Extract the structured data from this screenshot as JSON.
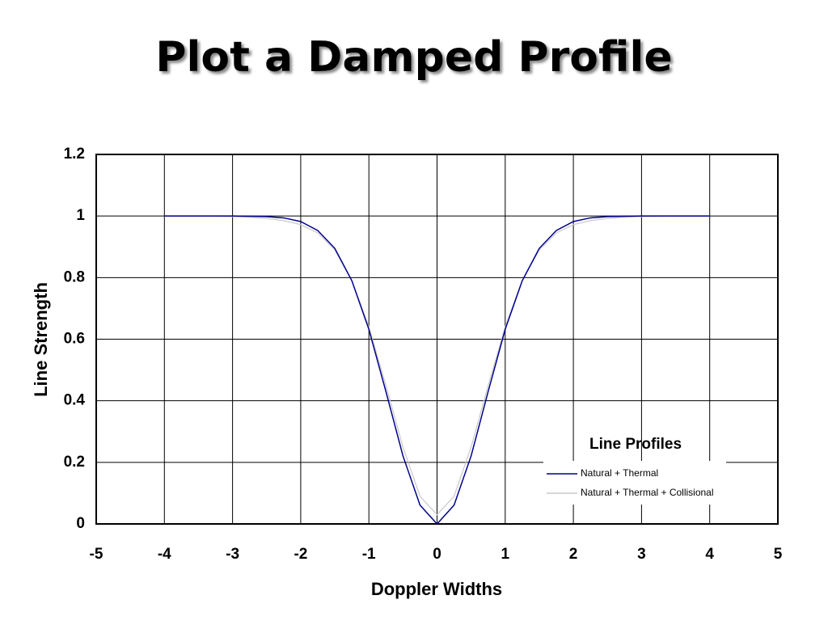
{
  "chart_data": {
    "type": "line",
    "title": "Plot a Damped Profile",
    "x_label": "Doppler Widths",
    "y_label": "Line Strength",
    "legend_title": "Line Profiles",
    "legend_position": "lower right",
    "grid": true,
    "xlim": [
      -5,
      5
    ],
    "ylim": [
      0,
      1.2
    ],
    "xticks": [
      -5,
      -4,
      -3,
      -2,
      -1,
      0,
      1,
      2,
      3,
      4,
      5
    ],
    "yticks": [
      0,
      0.2,
      0.4,
      0.6,
      0.8,
      1,
      1.2
    ],
    "x": [
      -4,
      -3.75,
      -3.5,
      -3.25,
      -3,
      -2.75,
      -2.5,
      -2.25,
      -2,
      -1.75,
      -1.5,
      -1.25,
      -1,
      -0.75,
      -0.5,
      -0.25,
      0,
      0.25,
      0.5,
      0.75,
      1,
      1.25,
      1.5,
      1.75,
      2,
      2.25,
      2.5,
      2.75,
      3,
      3.25,
      3.5,
      3.75,
      4
    ],
    "series": [
      {
        "name": "Natural + Thermal",
        "color": "#00008b",
        "values": [
          1,
          1,
          1,
          1,
          1,
          0.999,
          0.998,
          0.994,
          0.982,
          0.953,
          0.895,
          0.79,
          0.632,
          0.43,
          0.221,
          0.061,
          0,
          0.061,
          0.221,
          0.43,
          0.632,
          0.79,
          0.895,
          0.953,
          0.982,
          0.994,
          0.998,
          0.999,
          1,
          1,
          1,
          1,
          1
        ]
      },
      {
        "name": "Natural + Thermal + Collisional",
        "color": "#c8c8c8",
        "values": [
          1,
          1,
          1,
          0.999,
          0.998,
          0.996,
          0.992,
          0.985,
          0.972,
          0.945,
          0.89,
          0.79,
          0.64,
          0.45,
          0.25,
          0.09,
          0.03,
          0.09,
          0.25,
          0.45,
          0.64,
          0.79,
          0.89,
          0.945,
          0.972,
          0.985,
          0.992,
          0.996,
          0.998,
          0.999,
          1,
          1,
          1
        ]
      }
    ]
  }
}
